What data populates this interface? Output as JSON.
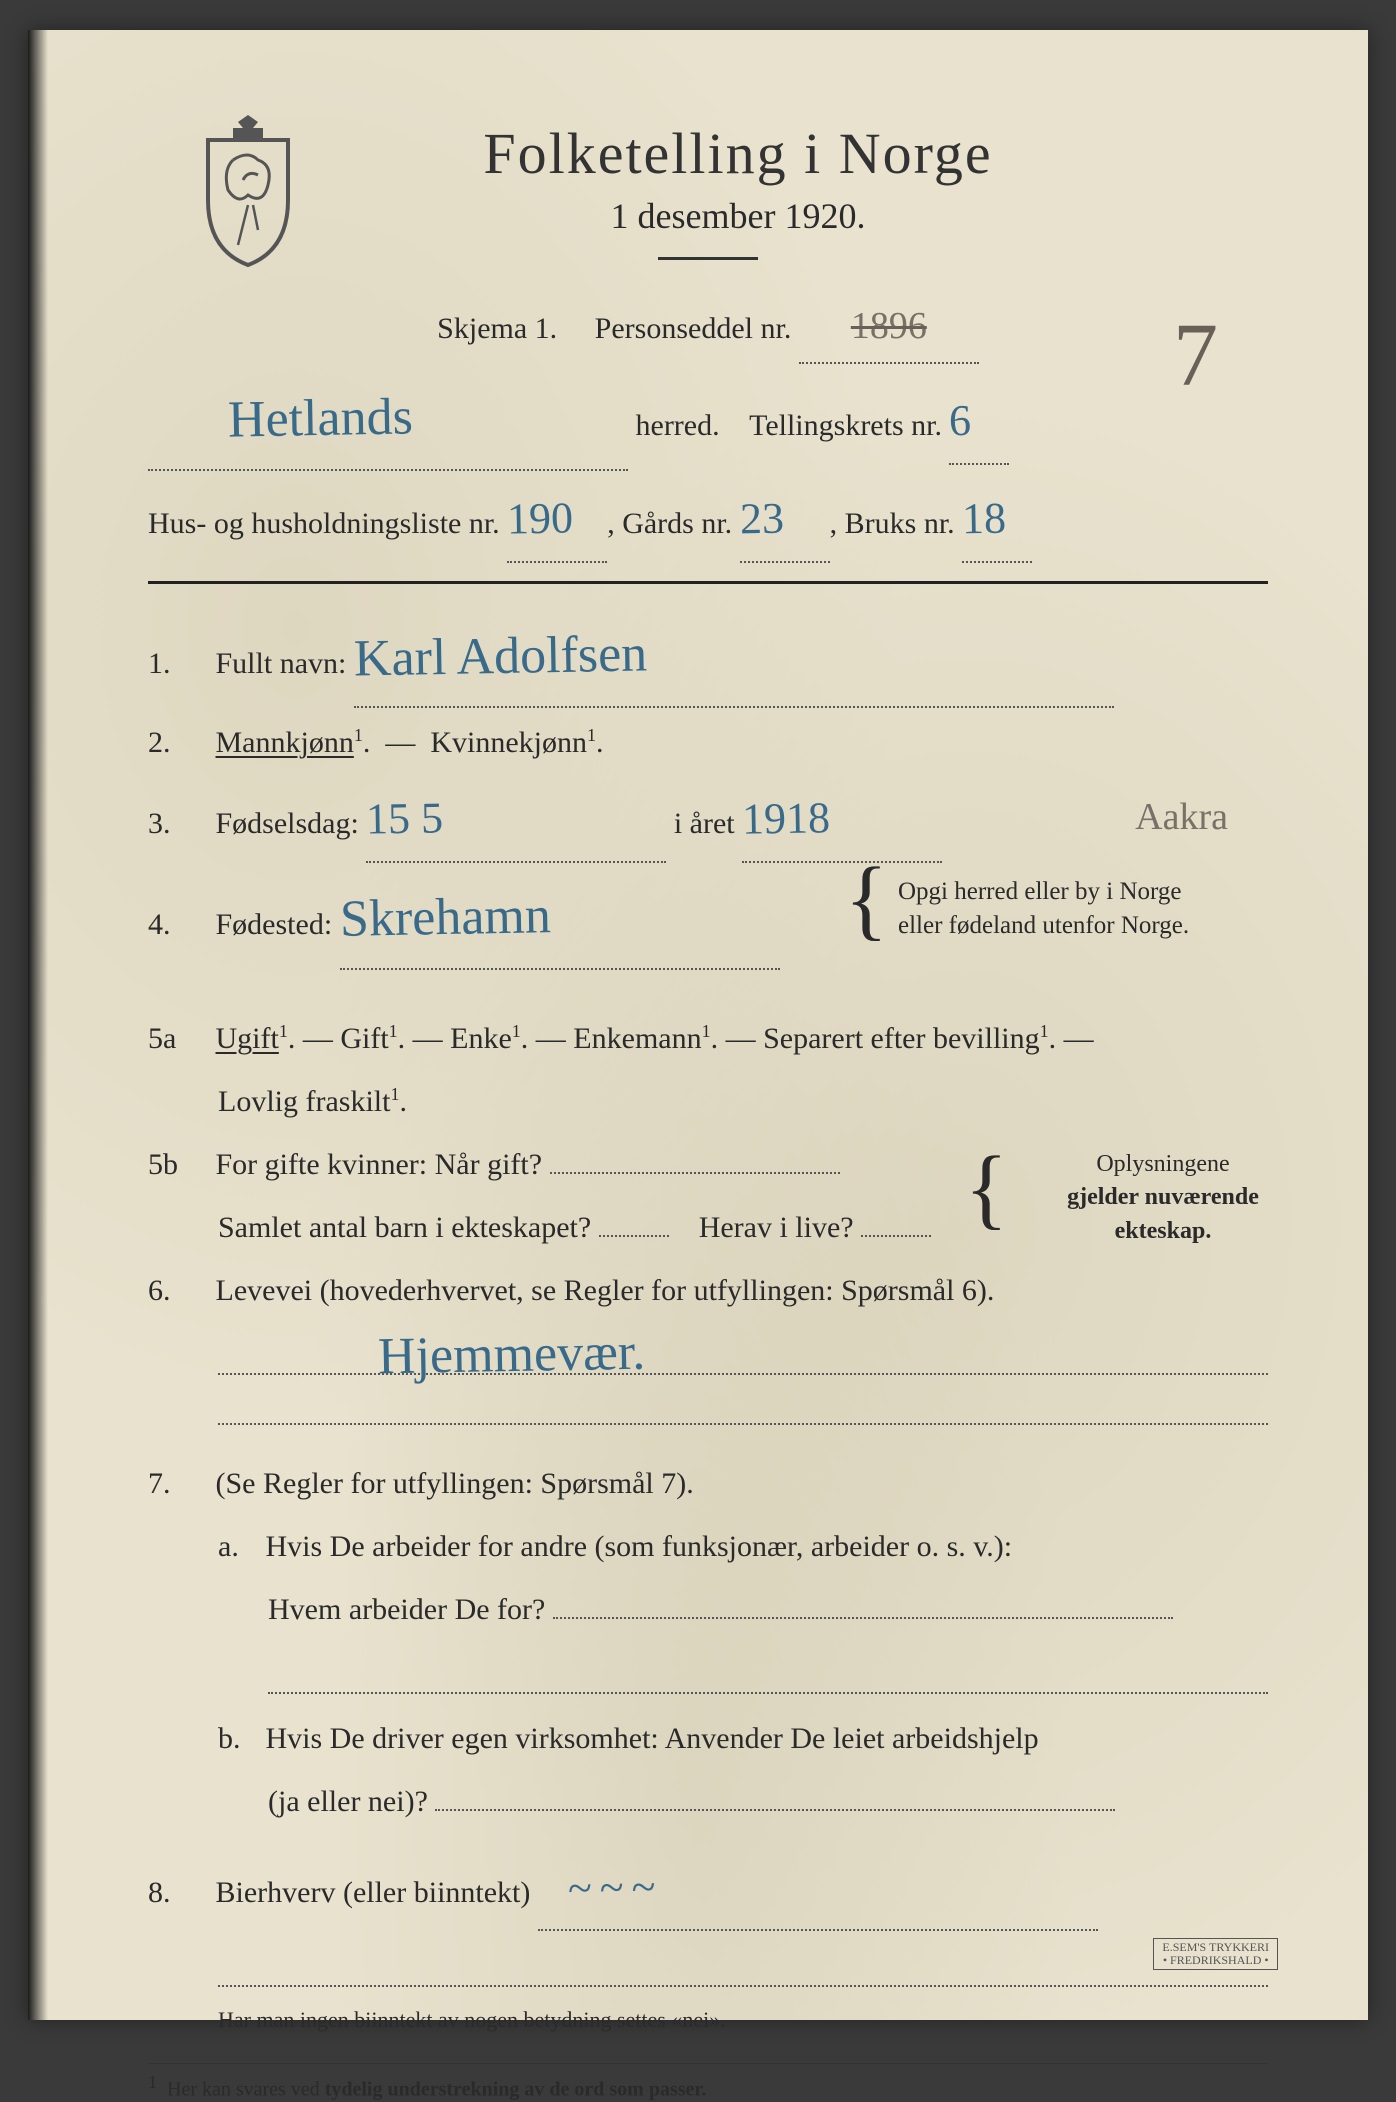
{
  "colors": {
    "paper_bg": "#e8e2ce",
    "print_ink": "#2a2a2a",
    "pen_ink": "#3a6a8a",
    "pencil": "#7a7068",
    "rule": "#222222"
  },
  "header": {
    "title": "Folketelling i Norge",
    "subtitle": "1 desember 1920."
  },
  "skjema": {
    "label": "Skjema 1.",
    "personseddel_label": "Personseddel nr.",
    "personseddel_nr_struck": "1896",
    "personseddel_nr_new": "7"
  },
  "herred": {
    "value": "Hetlands",
    "label": "herred.",
    "tellingskrets_label": "Tellingskrets nr.",
    "tellingskrets_nr": "6"
  },
  "husliste": {
    "label": "Hus- og husholdningsliste nr.",
    "nr": "190",
    "gards_label": "Gårds nr.",
    "gards_nr": "23",
    "bruks_label": "Bruks nr.",
    "bruks_nr": "18"
  },
  "q1": {
    "num": "1.",
    "label": "Fullt navn:",
    "value": "Karl Adolfsen"
  },
  "q2": {
    "num": "2.",
    "opt1": "Mannkjønn",
    "opt2": "Kvinnekjønn",
    "sup": "1"
  },
  "q3": {
    "num": "3.",
    "label": "Fødselsdag:",
    "day": "15   5",
    "mid": "i året",
    "year": "1918",
    "note": "Aakra"
  },
  "q4": {
    "num": "4.",
    "label": "Fødested:",
    "value": "Skrehamn",
    "aside1": "Opgi herred eller by i Norge",
    "aside2": "eller fødeland utenfor Norge."
  },
  "q5a": {
    "num": "5a",
    "opts": [
      "Ugift",
      "Gift",
      "Enke",
      "Enkemann",
      "Separert efter bevilling"
    ],
    "last": "Lovlig fraskilt",
    "sup": "1"
  },
  "q5b": {
    "num": "5b",
    "l1": "For gifte kvinner:  Når gift?",
    "l2a": "Samlet antal barn i ekteskapet?",
    "l2b": "Herav i live?",
    "aside1": "Oplysningene",
    "aside2": "gjelder nuværende",
    "aside3": "ekteskap."
  },
  "q6": {
    "num": "6.",
    "label": "Levevei (hovederhvervet, se Regler for utfyllingen:  Spørsmål 6).",
    "value": "Hjemmevær."
  },
  "q7": {
    "num": "7.",
    "label": "(Se Regler for utfyllingen:  Spørsmål 7).",
    "a_num": "a.",
    "a1": "Hvis De arbeider for andre (som funksjonær, arbeider o. s. v.):",
    "a2": "Hvem arbeider De for?",
    "b_num": "b.",
    "b1": "Hvis De driver egen virksomhet:  Anvender De leiet arbeidshjelp",
    "b2": "(ja eller nei)?"
  },
  "q8": {
    "num": "8.",
    "label": "Bierhverv (eller biinntekt)",
    "value": "—"
  },
  "footer": {
    "note": "Har man ingen biinntekt av nogen betydning settes «nei».",
    "footnote_num": "1",
    "footnote": "Her kan svares ved tydelig understrekning av de ord som passer.",
    "printer1": "E.SEM'S TRYKKERI",
    "printer2": "• FREDRIKSHALD •"
  }
}
